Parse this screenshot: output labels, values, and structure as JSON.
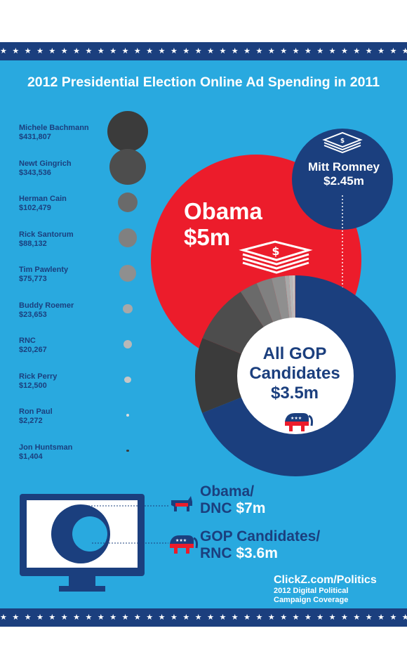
{
  "title": "2012 Presidential Election Online Ad Spending in 2011",
  "stars": "★ ★ ★ ★ ★ ★ ★ ★ ★ ★ ★ ★ ★ ★ ★ ★ ★ ★ ★ ★ ★ ★ ★ ★ ★ ★ ★ ★ ★ ★ ★ ★ ★ ★ ★ ★ ★ ★ ★ ★",
  "colors": {
    "background": "#29a9df",
    "navy": "#1b3f7e",
    "red": "#ec1c2b",
    "white": "#ffffff"
  },
  "chart_data": [
    {
      "type": "bubble",
      "title": "",
      "categories": [
        "Michele Bachmann",
        "Newt Gingrich",
        "Herman Cain",
        "Rick Santorum",
        "Tim Pawlenty",
        "Buddy Roemer",
        "RNC",
        "Rick Perry",
        "Ron Paul",
        "Jon Huntsman"
      ],
      "values": [
        431807,
        343536,
        102479,
        88132,
        75773,
        23653,
        20267,
        12500,
        2272,
        1404
      ],
      "labels": [
        "$431,807",
        "$343,536",
        "$102,479",
        "$88,132",
        "$75,773",
        "$23,653",
        "$20,267",
        "$12,500",
        "$2,272",
        "$1,404"
      ],
      "colors": [
        "#3b3b3b",
        "#4d4d4d",
        "#6a6a6a",
        "#808080",
        "#8f8f8f",
        "#a8a8a8",
        "#b8b8b8",
        "#c6c6c6",
        "#dcdcdc",
        "#3a3a3a"
      ]
    },
    {
      "type": "bubble",
      "title": "",
      "series": [
        {
          "name": "Obama",
          "value_label": "$5m",
          "value": 5.0,
          "color": "#ec1c2b"
        },
        {
          "name": "Mitt Romney",
          "value_label": "$2.45m",
          "value": 2.45,
          "color": "#1b3f7e"
        },
        {
          "name": "All GOP Candidates",
          "value_label": "$3.5m",
          "value": 3.5,
          "color": "#1b3f7e"
        }
      ]
    },
    {
      "type": "pie",
      "title": "",
      "categories": [
        "Mitt Romney",
        "Michele Bachmann",
        "Newt Gingrich",
        "Herman Cain",
        "Rick Santorum",
        "Tim Pawlenty",
        "Buddy Roemer",
        "RNC",
        "Rick Perry",
        "Ron Paul",
        "Jon Huntsman"
      ],
      "values": [
        2.45,
        0.431807,
        0.343536,
        0.102479,
        0.088132,
        0.075773,
        0.023653,
        0.020267,
        0.0125,
        0.002272,
        0.001404
      ],
      "colors": [
        "#1b3f7e",
        "#3b3b3b",
        "#4d4d4d",
        "#6a6a6a",
        "#808080",
        "#8f8f8f",
        "#a8a8a8",
        "#b8b8b8",
        "#c6c6c6",
        "#dcdcdc",
        "#3a3a3a"
      ]
    },
    {
      "type": "bubble",
      "title": "",
      "series": [
        {
          "name": "Obama/DNC",
          "value_label": "$7m",
          "value": 7.0
        },
        {
          "name": "GOP Candidates/RNC",
          "value_label": "$3.6m",
          "value": 3.6
        }
      ]
    }
  ],
  "obama": {
    "name": "Obama",
    "amount": "$5m"
  },
  "romney": {
    "name": "Mitt Romney",
    "amount": "$2.45m"
  },
  "gop": {
    "line1": "All GOP",
    "line2": "Candidates",
    "amount": "$3.5m"
  },
  "totals": [
    {
      "line1": "Obama/",
      "line2": "DNC",
      "amount": "$7m",
      "icon": "donkey-icon"
    },
    {
      "line1": "GOP Candidates/",
      "line2": "RNC",
      "amount": "$3.6m",
      "icon": "elephant-icon"
    }
  ],
  "credit": {
    "site": "ClickZ.com/Politics",
    "line1": "2012 Digital Political",
    "line2": "Campaign Coverage"
  }
}
